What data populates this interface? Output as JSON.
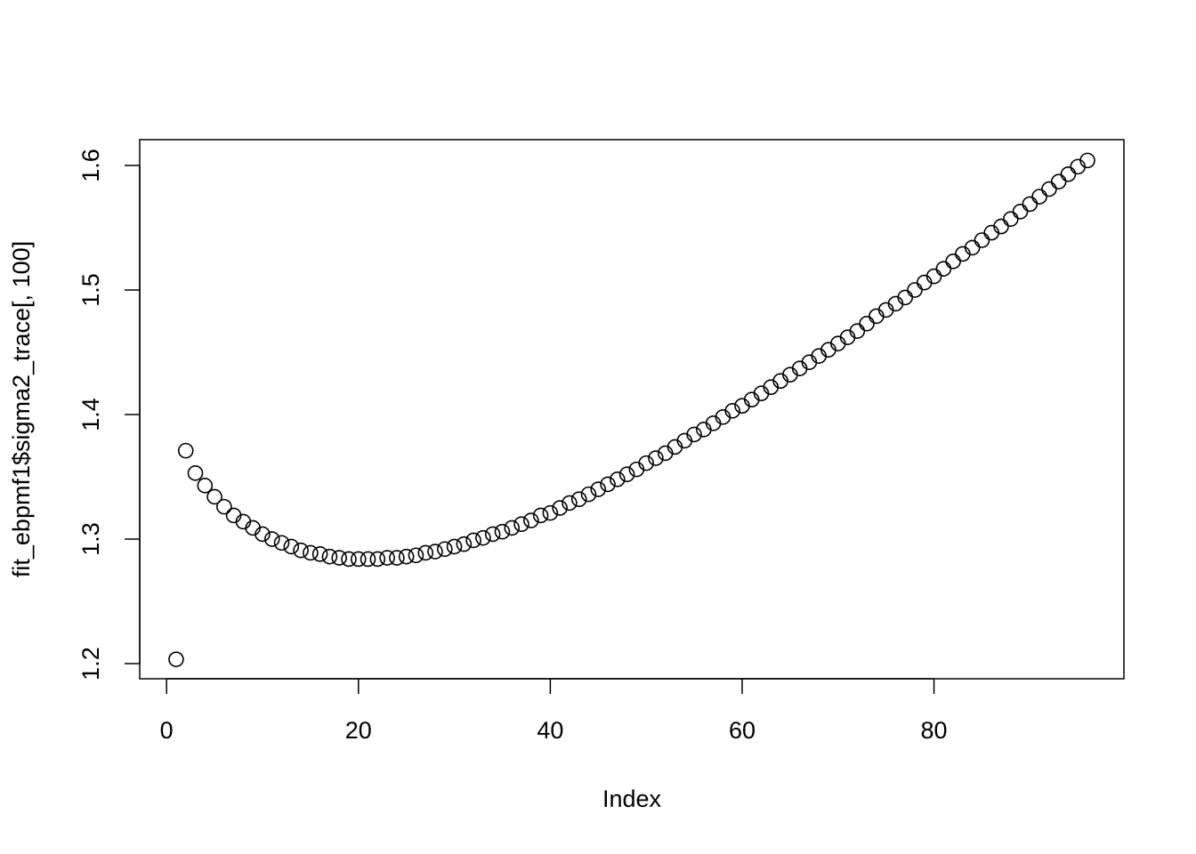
{
  "chart_data": {
    "type": "scatter",
    "x_label": "Index",
    "y_label": "fit_ebpmf1$sigma2_trace[, 100]",
    "x": [
      1,
      2,
      3,
      4,
      5,
      6,
      7,
      8,
      9,
      10,
      11,
      12,
      13,
      14,
      15,
      16,
      17,
      18,
      19,
      20,
      21,
      22,
      23,
      24,
      25,
      26,
      27,
      28,
      29,
      30,
      31,
      32,
      33,
      34,
      35,
      36,
      37,
      38,
      39,
      40,
      41,
      42,
      43,
      44,
      45,
      46,
      47,
      48,
      49,
      50,
      51,
      52,
      53,
      54,
      55,
      56,
      57,
      58,
      59,
      60,
      61,
      62,
      63,
      64,
      65,
      66,
      67,
      68,
      69,
      70,
      71,
      72,
      73,
      74,
      75,
      76,
      77,
      78,
      79,
      80,
      81,
      82,
      83,
      84,
      85,
      86,
      87,
      88,
      89,
      90,
      91,
      92,
      93,
      94,
      95,
      96
    ],
    "values": [
      1.2035,
      1.371,
      1.353,
      1.343,
      1.334,
      1.326,
      1.319,
      1.314,
      1.309,
      1.304,
      1.3,
      1.297,
      1.294,
      1.291,
      1.289,
      1.288,
      1.286,
      1.285,
      1.284,
      1.284,
      1.284,
      1.284,
      1.285,
      1.285,
      1.286,
      1.287,
      1.289,
      1.29,
      1.292,
      1.294,
      1.296,
      1.299,
      1.301,
      1.304,
      1.306,
      1.309,
      1.312,
      1.315,
      1.319,
      1.321,
      1.325,
      1.329,
      1.332,
      1.336,
      1.34,
      1.344,
      1.348,
      1.352,
      1.356,
      1.361,
      1.365,
      1.369,
      1.374,
      1.379,
      1.384,
      1.388,
      1.393,
      1.398,
      1.403,
      1.407,
      1.412,
      1.417,
      1.422,
      1.427,
      1.432,
      1.437,
      1.442,
      1.447,
      1.452,
      1.457,
      1.462,
      1.467,
      1.473,
      1.479,
      1.484,
      1.489,
      1.494,
      1.5,
      1.506,
      1.511,
      1.517,
      1.523,
      1.529,
      1.534,
      1.54,
      1.546,
      1.551,
      1.557,
      1.563,
      1.569,
      1.575,
      1.581,
      1.587,
      1.593,
      1.599,
      1.604
    ],
    "color": "#000000",
    "xlim": [
      -2.8,
      99.8
    ],
    "ylim": [
      1.1879,
      1.6207
    ],
    "xticks": [
      0,
      20,
      40,
      60,
      80
    ],
    "yticks": [
      1.2,
      1.3,
      1.4,
      1.5,
      1.6
    ],
    "grid": false
  }
}
